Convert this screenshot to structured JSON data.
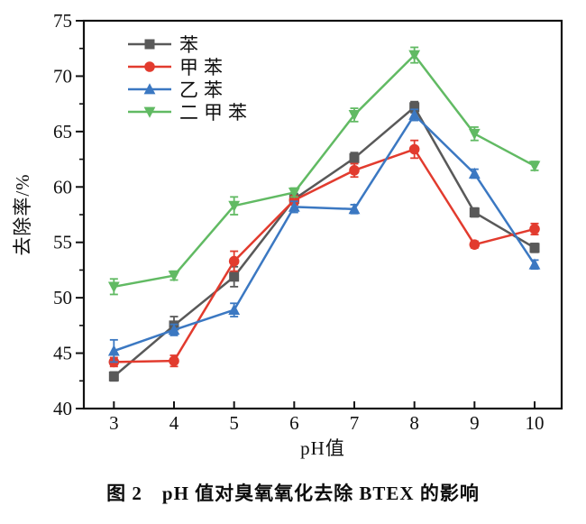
{
  "caption": "图 2　pH 值对臭氧氧化去除 BTEX 的影响",
  "chart_data": {
    "type": "line",
    "title": "",
    "xlabel": "pH值",
    "ylabel": "去除率/%",
    "x": [
      3,
      4,
      5,
      6,
      7,
      8,
      9,
      10
    ],
    "xticks": [
      3,
      4,
      5,
      6,
      7,
      8,
      9,
      10
    ],
    "yticks": [
      40,
      45,
      50,
      55,
      60,
      65,
      70,
      75
    ],
    "xlim": [
      2.5,
      10.45
    ],
    "ylim": [
      40,
      75
    ],
    "y_minor_step": 2.5,
    "grid": false,
    "legend_position": "top-left-inside",
    "axis_color": "#111111",
    "series": [
      {
        "id": "benzene",
        "name": "苯",
        "color": "#595959",
        "marker": "square",
        "values": [
          42.9,
          47.5,
          51.9,
          58.9,
          62.6,
          67.2,
          57.7,
          54.5
        ],
        "errors": [
          0.4,
          0.8,
          0.9,
          0.5,
          0.5,
          0.5,
          0.4,
          0.4
        ]
      },
      {
        "id": "toluene",
        "name": "甲苯",
        "color": "#e23b2e",
        "marker": "circle",
        "values": [
          44.2,
          44.3,
          53.3,
          58.8,
          61.5,
          63.4,
          54.8,
          56.2
        ],
        "errors": [
          0.4,
          0.5,
          0.9,
          0.4,
          0.6,
          0.8,
          0.3,
          0.5
        ]
      },
      {
        "id": "ethylbenzene",
        "name": "乙苯",
        "color": "#3b78c2",
        "marker": "triangle-up",
        "values": [
          45.2,
          47.1,
          48.9,
          58.2,
          58.0,
          66.5,
          61.2,
          53.0
        ],
        "errors": [
          1.0,
          0.5,
          0.6,
          0.5,
          0.4,
          0.5,
          0.4,
          0.4
        ]
      },
      {
        "id": "xylene",
        "name": "二甲苯",
        "color": "#61ba63",
        "marker": "triangle-down",
        "values": [
          51.0,
          52.0,
          58.3,
          59.5,
          66.5,
          71.9,
          64.8,
          61.9
        ],
        "errors": [
          0.7,
          0.4,
          0.8,
          0.4,
          0.6,
          0.7,
          0.6,
          0.4
        ]
      }
    ]
  }
}
